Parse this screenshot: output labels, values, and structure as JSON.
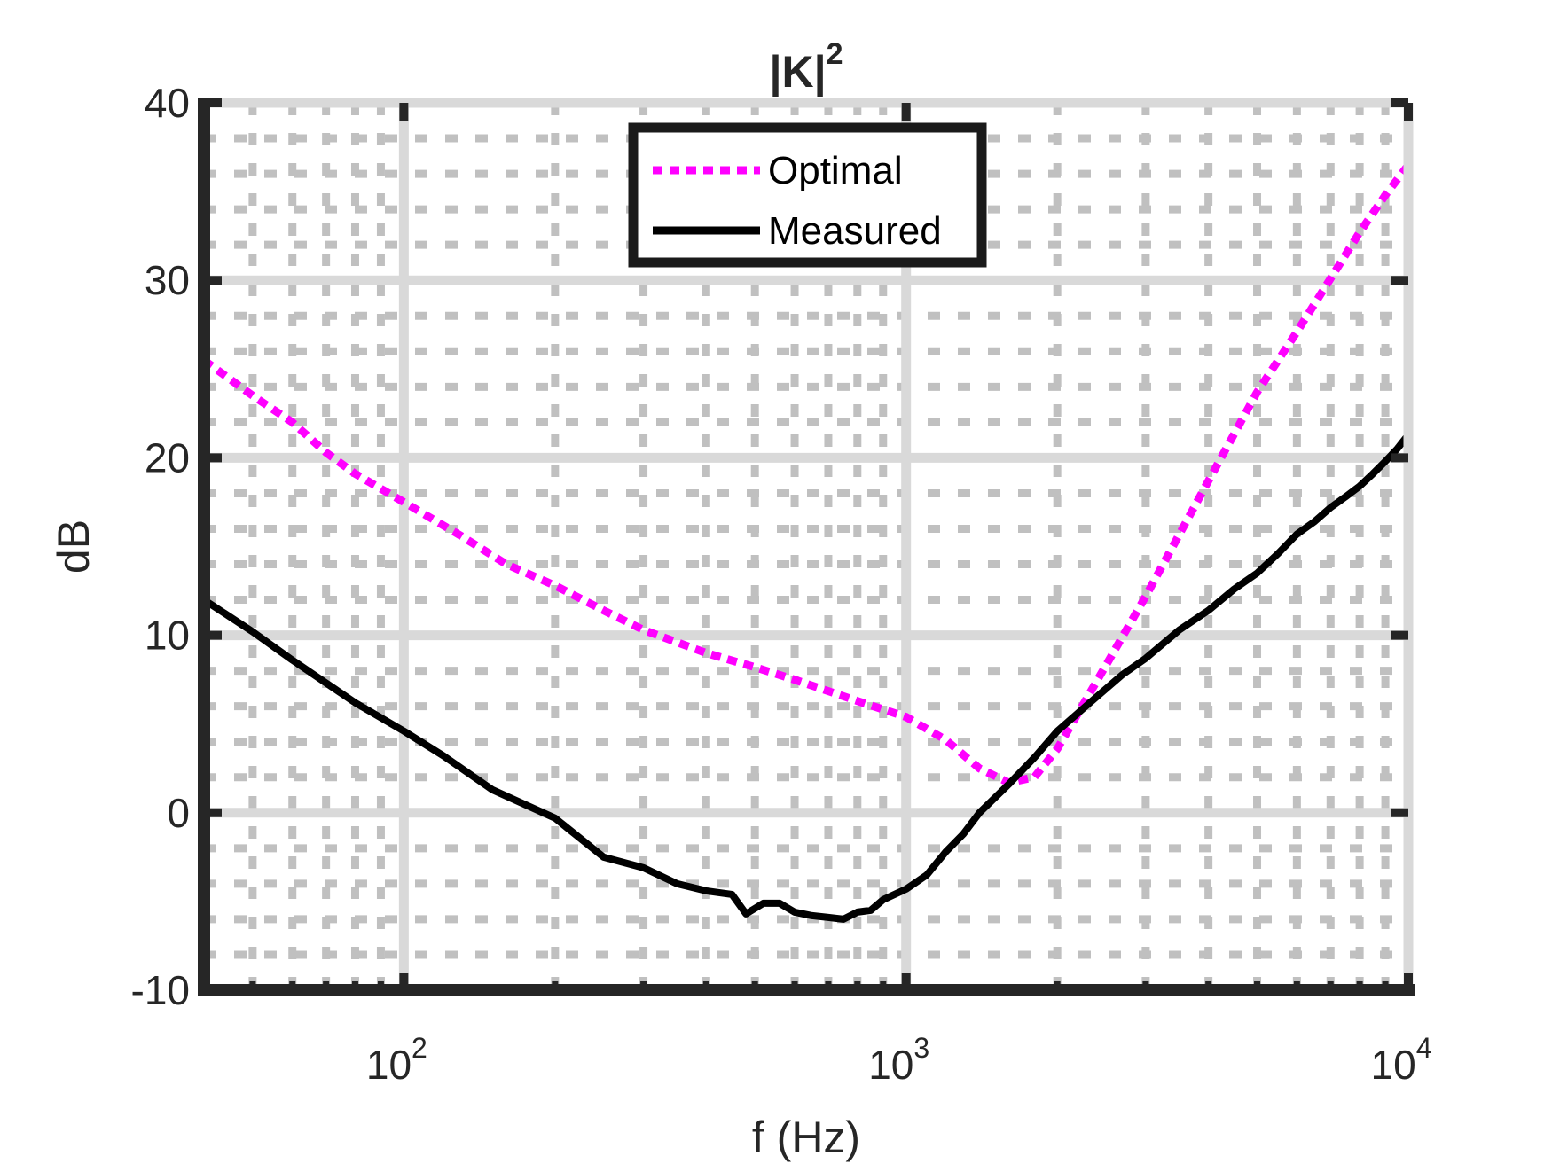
{
  "chart_data": {
    "type": "line",
    "title": "|K|",
    "title_superscript": "2",
    "xlabel": "f (Hz)",
    "ylabel": "dB",
    "x_scale": "log",
    "xlim": [
      40,
      10000
    ],
    "ylim": [
      -10,
      40
    ],
    "yticks": [
      -10,
      0,
      10,
      20,
      30,
      40
    ],
    "ytick_labels": [
      "-10",
      "0",
      "10",
      "20",
      "30",
      "40"
    ],
    "xticks": [
      {
        "value": 100,
        "base": "10",
        "exp": "2"
      },
      {
        "value": 1000,
        "base": "10",
        "exp": "3"
      },
      {
        "value": 10000,
        "base": "10",
        "exp": "4"
      }
    ],
    "grid": true,
    "minor_grid": true,
    "legend_position": "top-center",
    "series": [
      {
        "name": "Optimal",
        "color": "#ff00ff",
        "style": "dotted",
        "points": [
          [
            40,
            25.5
          ],
          [
            50,
            23.5
          ],
          [
            60,
            22
          ],
          [
            70,
            20.3
          ],
          [
            80,
            19.1
          ],
          [
            100,
            17.5
          ],
          [
            130,
            15.6
          ],
          [
            160,
            14
          ],
          [
            200,
            12.8
          ],
          [
            250,
            11.4
          ],
          [
            300,
            10.3
          ],
          [
            400,
            9
          ],
          [
            500,
            8.2
          ],
          [
            600,
            7.5
          ],
          [
            800,
            6.3
          ],
          [
            1000,
            5.4
          ],
          [
            1200,
            4.1
          ],
          [
            1400,
            2.5
          ],
          [
            1600,
            1.7
          ],
          [
            1800,
            2
          ],
          [
            2000,
            3.6
          ],
          [
            2500,
            8.3
          ],
          [
            3000,
            12.2
          ],
          [
            4000,
            18.7
          ],
          [
            5000,
            23.7
          ],
          [
            6000,
            27.1
          ],
          [
            7000,
            30.1
          ],
          [
            8000,
            32.7
          ],
          [
            9000,
            34.8
          ],
          [
            10000,
            36.5
          ]
        ]
      },
      {
        "name": "Measured",
        "color": "#000000",
        "style": "solid",
        "points": [
          [
            40,
            12
          ],
          [
            50,
            10.2
          ],
          [
            60,
            8.6
          ],
          [
            80,
            6.2
          ],
          [
            100,
            4.6
          ],
          [
            120,
            3.2
          ],
          [
            150,
            1.3
          ],
          [
            200,
            -0.3
          ],
          [
            250,
            -2.5
          ],
          [
            300,
            -3.1
          ],
          [
            350,
            -4
          ],
          [
            400,
            -4.4
          ],
          [
            450,
            -4.6
          ],
          [
            480,
            -5.7
          ],
          [
            520,
            -5.1
          ],
          [
            560,
            -5.1
          ],
          [
            600,
            -5.6
          ],
          [
            650,
            -5.8
          ],
          [
            700,
            -5.9
          ],
          [
            750,
            -6
          ],
          [
            800,
            -5.6
          ],
          [
            850,
            -5.5
          ],
          [
            900,
            -4.9
          ],
          [
            1000,
            -4.3
          ],
          [
            1100,
            -3.5
          ],
          [
            1200,
            -2.2
          ],
          [
            1300,
            -1.2
          ],
          [
            1400,
            0
          ],
          [
            1600,
            1.6
          ],
          [
            1800,
            3.1
          ],
          [
            2000,
            4.6
          ],
          [
            2300,
            6.1
          ],
          [
            2700,
            7.8
          ],
          [
            3000,
            8.7
          ],
          [
            3500,
            10.3
          ],
          [
            4000,
            11.4
          ],
          [
            4500,
            12.6
          ],
          [
            5000,
            13.5
          ],
          [
            5500,
            14.6
          ],
          [
            6000,
            15.7
          ],
          [
            6500,
            16.4
          ],
          [
            7000,
            17.2
          ],
          [
            7500,
            17.8
          ],
          [
            8000,
            18.4
          ],
          [
            8500,
            19.1
          ],
          [
            9000,
            19.8
          ],
          [
            9500,
            20.5
          ],
          [
            10000,
            21.3
          ]
        ]
      }
    ]
  }
}
